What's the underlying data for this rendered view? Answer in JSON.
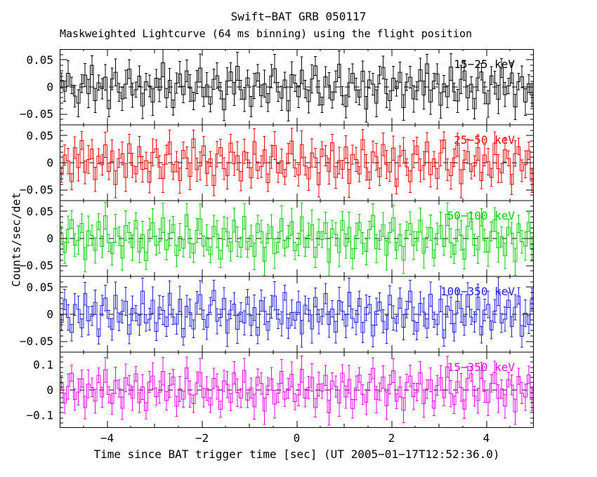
{
  "title": "Swift−BAT GRB 050117",
  "subtitle": "Maskweighted Lightcurve (64 ms binning) using the flight position",
  "xlabel": "Time since BAT trigger time [sec] (UT 2005−01−17T12:52:36.0)",
  "ylabel": "Counts/sec/det",
  "chart_data": {
    "type": "line",
    "style": "step-histogram-with-error-bars",
    "grid": false,
    "legend_position": "inside-top-right-per-panel",
    "x_range": [
      -5,
      5
    ],
    "bin_seconds": 0.064,
    "x_ticks": {
      "values": [
        -4,
        -2,
        0,
        2,
        4
      ],
      "labels": [
        "−4",
        "−2",
        "0",
        "2",
        "4"
      ]
    },
    "zero_line": {
      "style": "dashed",
      "color": "#000000",
      "value": 0
    },
    "unit": 0.001,
    "panels": [
      {
        "label": "15−25 keV",
        "color": "#000000",
        "ylim": [
          -0.07,
          0.07
        ],
        "ytick_major_values": [
          0.05,
          0,
          -0.05
        ],
        "ytick_major_labels": [
          "0.05",
          "0",
          "−0.05"
        ],
        "ytick_minor_step": 0.01,
        "err": 20,
        "values": [
          12,
          -8,
          25,
          3,
          -17,
          -30,
          6,
          22,
          -12,
          40,
          -25,
          8,
          -3,
          18,
          -40,
          15,
          27,
          -10,
          -22,
          5,
          33,
          -15,
          -5,
          20,
          -35,
          10,
          2,
          -28,
          16,
          -6,
          45,
          -20,
          12,
          -38,
          7,
          24,
          -14,
          30,
          -2,
          -26,
          9,
          35,
          -18,
          4,
          -32,
          14,
          21,
          -7,
          -42,
          11,
          28,
          -13,
          38,
          -5,
          -23,
          17,
          -36,
          2,
          26,
          -16,
          6,
          -29,
          20,
          34,
          -9,
          -21,
          13,
          -44,
          23,
          7,
          -18,
          31,
          -4,
          -27,
          15,
          39,
          -11,
          -33,
          19,
          3,
          -24,
          10,
          42,
          -16,
          -36,
          8,
          25,
          -6,
          -19,
          29,
          -41,
          13,
          5,
          -30,
          22,
          36,
          -12,
          -25,
          16,
          -3,
          27,
          -38,
          9,
          18,
          -22,
          -7,
          32,
          -15,
          43,
          -28,
          11,
          24,
          -34,
          6,
          -18,
          37,
          -9,
          -26,
          14,
          30,
          -20,
          5,
          -40,
          17,
          28,
          -11,
          -31,
          21,
          8,
          -23,
          35,
          -14,
          2,
          26,
          -37,
          10,
          19,
          -28,
          6,
          -15
        ]
      },
      {
        "label": "25−50 keV",
        "color": "#ee0000",
        "ylim": [
          -0.07,
          0.07
        ],
        "ytick_major_values": [
          0.05,
          0,
          -0.05
        ],
        "ytick_major_labels": [
          "0.05",
          "0",
          "−0.05"
        ],
        "ytick_minor_step": 0.01,
        "err": 20,
        "values": [
          -22,
          14,
          3,
          -35,
          28,
          -9,
          41,
          -18,
          6,
          25,
          -31,
          12,
          -4,
          33,
          -16,
          22,
          -40,
          8,
          17,
          -27,
          35,
          -5,
          -21,
          30,
          -12,
          4,
          -36,
          19,
          26,
          -8,
          -29,
          15,
          38,
          -17,
          2,
          -33,
          23,
          9,
          -25,
          44,
          -13,
          -6,
          31,
          -20,
          7,
          -42,
          16,
          28,
          -11,
          -24,
          36,
          -2,
          13,
          -34,
          21,
          5,
          -28,
          39,
          -14,
          -7,
          24,
          -37,
          11,
          32,
          -19,
          3,
          -26,
          17,
          40,
          -10,
          -23,
          34,
          -6,
          -30,
          18,
          9,
          -41,
          25,
          13,
          -16,
          37,
          -27,
          4,
          -12,
          29,
          -38,
          15,
          6,
          -21,
          43,
          -9,
          -32,
          20,
          11,
          -26,
          34,
          -3,
          -17,
          27,
          -44,
          12,
          23,
          -8,
          -35,
          16,
          31,
          -14,
          -5,
          38,
          -22,
          7,
          -29,
          18,
          42,
          -13,
          -24,
          9,
          33,
          -39,
          5,
          21,
          -16,
          -6,
          28,
          -33,
          14,
          2,
          -27,
          36,
          -11,
          -19,
          24,
          8,
          -40,
          17,
          30,
          -15,
          -3,
          22,
          -34
        ]
      },
      {
        "label": "50−100 keV",
        "color": "#00cc00",
        "ylim": [
          -0.07,
          0.07
        ],
        "ytick_major_values": [
          0.05,
          0,
          -0.05
        ],
        "ytick_major_labels": [
          "0.05",
          "0",
          "−0.05"
        ],
        "ytick_minor_step": 0.01,
        "err": 21,
        "values": [
          8,
          -26,
          17,
          35,
          -12,
          -3,
          28,
          -39,
          14,
          6,
          -22,
          31,
          -15,
          42,
          -8,
          -28,
          19,
          4,
          -36,
          24,
          11,
          -17,
          33,
          -25,
          7,
          -41,
          16,
          29,
          -13,
          -5,
          38,
          -21,
          10,
          26,
          -32,
          3,
          -18,
          44,
          -9,
          -27,
          15,
          36,
          -14,
          2,
          -30,
          23,
          8,
          -38,
          19,
          12,
          -24,
          34,
          -6,
          -16,
          41,
          -20,
          5,
          -33,
          27,
          13,
          -42,
          9,
          22,
          -28,
          -7,
          37,
          -18,
          4,
          31,
          -23,
          -11,
          40,
          -16,
          6,
          25,
          -35,
          12,
          -2,
          29,
          -44,
          18,
          8,
          -26,
          33,
          -14,
          21,
          -37,
          5,
          30,
          -9,
          -24,
          16,
          43,
          -19,
          -3,
          26,
          -31,
          11,
          38,
          -22,
          7,
          -40,
          15,
          28,
          -13,
          -5,
          34,
          -27,
          2,
          20,
          -36,
          9,
          24,
          -15,
          45,
          -8,
          -29,
          17,
          6,
          -38,
          23,
          32,
          -12,
          -21,
          39,
          -4,
          -25,
          13,
          35,
          -17,
          3,
          -32,
          21,
          10,
          -43,
          27,
          -6,
          -14,
          30,
          -19
        ]
      },
      {
        "label": "100−350 keV",
        "color": "#2222dd",
        "ylim": [
          -0.07,
          0.07
        ],
        "ytick_major_values": [
          0.05,
          0,
          -0.05
        ],
        "ytick_major_labels": [
          "0.05",
          "0",
          "−0.05"
        ],
        "ytick_minor_step": 0.01,
        "err": 20,
        "values": [
          -15,
          27,
          -6,
          -34,
          18,
          9,
          -25,
          38,
          -12,
          -3,
          22,
          -41,
          16,
          30,
          -8,
          -28,
          35,
          -14,
          5,
          24,
          -37,
          11,
          2,
          -20,
          43,
          -16,
          -9,
          26,
          -32,
          13,
          7,
          -23,
          39,
          -5,
          -18,
          28,
          -42,
          15,
          3,
          -27,
          21,
          36,
          -10,
          -24,
          17,
          44,
          -13,
          -6,
          29,
          -35,
          8,
          19,
          -28,
          4,
          -16,
          32,
          -21,
          12,
          -39,
          25,
          6,
          -30,
          14,
          34,
          -9,
          -18,
          40,
          -26,
          3,
          -11,
          23,
          -36,
          17,
          8,
          -27,
          31,
          -14,
          -4,
          38,
          -19,
          10,
          -33,
          25,
          6,
          -22,
          41,
          -8,
          -15,
          29,
          -34,
          12,
          18,
          -40,
          5,
          23,
          -13,
          -28,
          35,
          -7,
          -17,
          30,
          -24,
          9,
          43,
          -12,
          -31,
          20,
          4,
          -26,
          37,
          -10,
          -19,
          28,
          -44,
          15,
          7,
          -33,
          24,
          11,
          -21,
          36,
          -5,
          -14,
          32,
          -38,
          8,
          18,
          -29,
          6,
          42,
          -16,
          -9,
          26,
          -23,
          13,
          34,
          -41,
          2,
          -19,
          27
        ]
      },
      {
        "label": "15−350 keV",
        "color": "#ee00ee",
        "ylim": [
          -0.15,
          0.15
        ],
        "ytick_major_values": [
          0.1,
          0,
          -0.1
        ],
        "ytick_major_labels": [
          "0.1",
          "0",
          "−0.1"
        ],
        "ytick_minor_step": 0.02,
        "err": 42,
        "values": [
          28,
          -52,
          14,
          66,
          -38,
          -8,
          45,
          -70,
          24,
          10,
          -44,
          58,
          -28,
          80,
          -18,
          -54,
          38,
          6,
          -72,
          48,
          20,
          -34,
          64,
          -50,
          12,
          -82,
          32,
          56,
          -26,
          -8,
          74,
          -42,
          18,
          52,
          -64,
          4,
          -36,
          88,
          -16,
          -54,
          28,
          70,
          -30,
          6,
          -60,
          46,
          14,
          -76,
          36,
          22,
          -48,
          68,
          -10,
          -32,
          78,
          -40,
          8,
          -66,
          52,
          26,
          -84,
          16,
          44,
          -56,
          -12,
          74,
          -36,
          6,
          62,
          -46,
          -20,
          82,
          -32,
          10,
          50,
          -70,
          24,
          -4,
          58,
          -90,
          36,
          14,
          -52,
          66,
          -28,
          42,
          -74,
          8,
          60,
          -18,
          -48,
          30,
          86,
          -38,
          -6,
          52,
          -62,
          22,
          76,
          -44,
          12,
          -80,
          30,
          56,
          -26,
          -8,
          68,
          -54,
          4,
          40,
          -72,
          18,
          48,
          -30,
          92,
          -14,
          -58,
          34,
          10,
          -76,
          46,
          64,
          -24,
          -42,
          78,
          -6,
          -50,
          26,
          70,
          -34,
          4,
          -64,
          42,
          20,
          -86,
          54,
          -12,
          -28,
          60,
          -38
        ]
      }
    ]
  }
}
